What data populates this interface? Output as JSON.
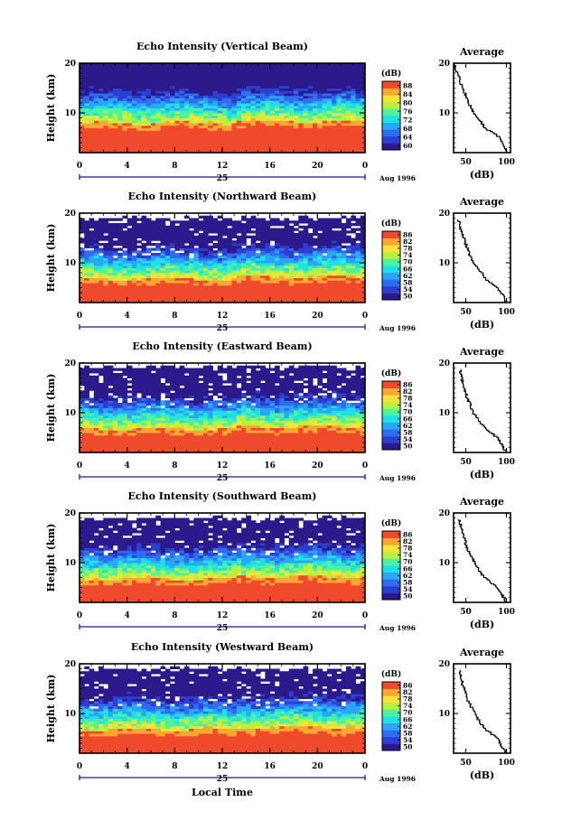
{
  "chart_data": [
    {
      "type": "heatmap",
      "title": "Echo Intensity (Vertical Beam)",
      "ylabel": "Height (km)",
      "xlabel": "",
      "x_ticks": [
        "0",
        "4",
        "8",
        "12",
        "16",
        "20",
        "0"
      ],
      "y_ticks": [
        "10",
        "20"
      ],
      "xlim": [
        0,
        24
      ],
      "ylim": [
        2,
        20
      ],
      "date_day": "25",
      "date_month": "Aug 1996",
      "colorbar": {
        "title": "(dB)",
        "ticks": [
          "60",
          "64",
          "68",
          "72",
          "76",
          "80",
          "84",
          "88"
        ],
        "range": [
          60,
          88
        ]
      },
      "surface_km": 6.8,
      "sens_top_km": 19.5,
      "average": {
        "title": "Average",
        "xlabel": "(dB)",
        "x_ticks": [
          "50",
          "100"
        ],
        "y_ticks": [
          "10",
          "20"
        ],
        "xlim": [
          35,
          105
        ],
        "profile": [
          [
            2,
            100
          ],
          [
            3,
            98
          ],
          [
            4,
            96
          ],
          [
            5,
            93
          ],
          [
            6,
            85
          ],
          [
            7,
            74
          ],
          [
            8,
            70
          ],
          [
            9,
            66
          ],
          [
            10,
            61
          ],
          [
            11,
            57
          ],
          [
            12,
            54
          ],
          [
            13,
            52
          ],
          [
            14,
            49
          ],
          [
            15,
            46
          ],
          [
            16,
            44
          ],
          [
            17,
            42
          ],
          [
            18,
            40
          ],
          [
            19,
            38
          ],
          [
            20,
            37
          ]
        ]
      }
    },
    {
      "type": "heatmap",
      "title": "Echo Intensity (Northward Beam)",
      "ylabel": "Height (km)",
      "xlabel": "",
      "x_ticks": [
        "0",
        "4",
        "8",
        "12",
        "16",
        "20",
        "0"
      ],
      "y_ticks": [
        "10",
        "20"
      ],
      "xlim": [
        0,
        24
      ],
      "ylim": [
        2,
        20
      ],
      "date_day": "25",
      "date_month": "Aug 1996",
      "colorbar": {
        "title": "(dB)",
        "ticks": [
          "50",
          "54",
          "58",
          "62",
          "66",
          "70",
          "74",
          "78",
          "82",
          "86"
        ],
        "range": [
          50,
          86
        ]
      },
      "surface_km": 5.6,
      "sens_top_km": 19.0,
      "average": {
        "title": "Average",
        "xlabel": "(dB)",
        "x_ticks": [
          "50",
          "100"
        ],
        "y_ticks": [
          "10",
          "20"
        ],
        "xlim": [
          35,
          105
        ],
        "profile": [
          [
            2,
            100
          ],
          [
            3,
            98
          ],
          [
            4,
            94
          ],
          [
            5,
            90
          ],
          [
            6,
            82
          ],
          [
            7,
            74
          ],
          [
            8,
            70
          ],
          [
            9,
            65
          ],
          [
            10,
            60
          ],
          [
            11,
            57
          ],
          [
            12,
            54
          ],
          [
            13,
            52
          ],
          [
            14,
            50
          ],
          [
            15,
            48
          ],
          [
            16,
            45
          ],
          [
            17,
            44
          ],
          [
            18,
            43
          ],
          [
            19,
            41
          ]
        ]
      }
    },
    {
      "type": "heatmap",
      "title": "Echo Intensity (Eastward Beam)",
      "ylabel": "Height (km)",
      "xlabel": "",
      "x_ticks": [
        "0",
        "4",
        "8",
        "12",
        "16",
        "20",
        "0"
      ],
      "y_ticks": [
        "10",
        "20"
      ],
      "xlim": [
        0,
        24
      ],
      "ylim": [
        2,
        20
      ],
      "date_day": "25",
      "date_month": "Aug 1996",
      "colorbar": {
        "title": "(dB)",
        "ticks": [
          "50",
          "54",
          "58",
          "62",
          "66",
          "70",
          "74",
          "78",
          "82",
          "86"
        ],
        "range": [
          50,
          86
        ]
      },
      "surface_km": 5.6,
      "sens_top_km": 19.3,
      "average": {
        "title": "Average",
        "xlabel": "(dB)",
        "x_ticks": [
          "50",
          "100"
        ],
        "y_ticks": [
          "10",
          "20"
        ],
        "xlim": [
          35,
          105
        ],
        "profile": [
          [
            2,
            100
          ],
          [
            3,
            97
          ],
          [
            4,
            94
          ],
          [
            5,
            89
          ],
          [
            6,
            82
          ],
          [
            7,
            74
          ],
          [
            8,
            69
          ],
          [
            9,
            65
          ],
          [
            10,
            60
          ],
          [
            11,
            57
          ],
          [
            12,
            55
          ],
          [
            13,
            52
          ],
          [
            14,
            50
          ],
          [
            15,
            48
          ],
          [
            16,
            46
          ],
          [
            17,
            45
          ],
          [
            18,
            44
          ],
          [
            19,
            43
          ]
        ]
      }
    },
    {
      "type": "heatmap",
      "title": "Echo Intensity (Southward Beam)",
      "ylabel": "Height (km)",
      "xlabel": "",
      "x_ticks": [
        "0",
        "4",
        "8",
        "12",
        "16",
        "20",
        "0"
      ],
      "y_ticks": [
        "10",
        "20"
      ],
      "xlim": [
        0,
        24
      ],
      "ylim": [
        2,
        20
      ],
      "date_day": "25",
      "date_month": "Aug 1996",
      "colorbar": {
        "title": "(dB)",
        "ticks": [
          "50",
          "54",
          "58",
          "62",
          "66",
          "70",
          "74",
          "78",
          "82",
          "86"
        ],
        "range": [
          50,
          86
        ]
      },
      "surface_km": 5.6,
      "sens_top_km": 19.0,
      "average": {
        "title": "Average",
        "xlabel": "(dB)",
        "x_ticks": [
          "50",
          "100"
        ],
        "y_ticks": [
          "10",
          "20"
        ],
        "xlim": [
          35,
          105
        ],
        "profile": [
          [
            2,
            100
          ],
          [
            3,
            97
          ],
          [
            4,
            93
          ],
          [
            5,
            89
          ],
          [
            6,
            82
          ],
          [
            7,
            74
          ],
          [
            8,
            69
          ],
          [
            9,
            65
          ],
          [
            10,
            61
          ],
          [
            11,
            58
          ],
          [
            12,
            55
          ],
          [
            13,
            52
          ],
          [
            14,
            50
          ],
          [
            15,
            48
          ],
          [
            16,
            46
          ],
          [
            17,
            45
          ],
          [
            18,
            43
          ],
          [
            19,
            42
          ]
        ]
      }
    },
    {
      "type": "heatmap",
      "title": "Echo Intensity (Westward Beam)",
      "ylabel": "Height (km)",
      "xlabel": "Local Time",
      "x_ticks": [
        "0",
        "4",
        "8",
        "12",
        "16",
        "20",
        "0"
      ],
      "y_ticks": [
        "10",
        "20"
      ],
      "xlim": [
        0,
        24
      ],
      "ylim": [
        2,
        20
      ],
      "date_day": "25",
      "date_month": "Aug 1996",
      "colorbar": {
        "title": "(dB)",
        "ticks": [
          "50",
          "54",
          "58",
          "62",
          "66",
          "70",
          "74",
          "78",
          "82",
          "86"
        ],
        "range": [
          50,
          86
        ]
      },
      "surface_km": 5.6,
      "sens_top_km": 19.0,
      "average": {
        "title": "Average",
        "xlabel": "(dB)",
        "x_ticks": [
          "50",
          "100"
        ],
        "y_ticks": [
          "10",
          "20"
        ],
        "xlim": [
          35,
          105
        ],
        "profile": [
          [
            2,
            100
          ],
          [
            3,
            97
          ],
          [
            4,
            93
          ],
          [
            5,
            89
          ],
          [
            6,
            82
          ],
          [
            7,
            74
          ],
          [
            8,
            69
          ],
          [
            9,
            65
          ],
          [
            10,
            61
          ],
          [
            11,
            58
          ],
          [
            12,
            55
          ],
          [
            13,
            52
          ],
          [
            14,
            50
          ],
          [
            15,
            48
          ],
          [
            16,
            46
          ],
          [
            17,
            45
          ],
          [
            18,
            43
          ],
          [
            19,
            42
          ]
        ]
      }
    }
  ],
  "colors": {
    "jet": [
      "#2c1a8c",
      "#2d3fd0",
      "#2f6df0",
      "#2aa6f5",
      "#1ee0e6",
      "#4cf2a0",
      "#b8f040",
      "#f7e23a",
      "#f6a832",
      "#ef4a2c"
    ],
    "axis": "#000000",
    "date_line": "#1a1a9a"
  }
}
